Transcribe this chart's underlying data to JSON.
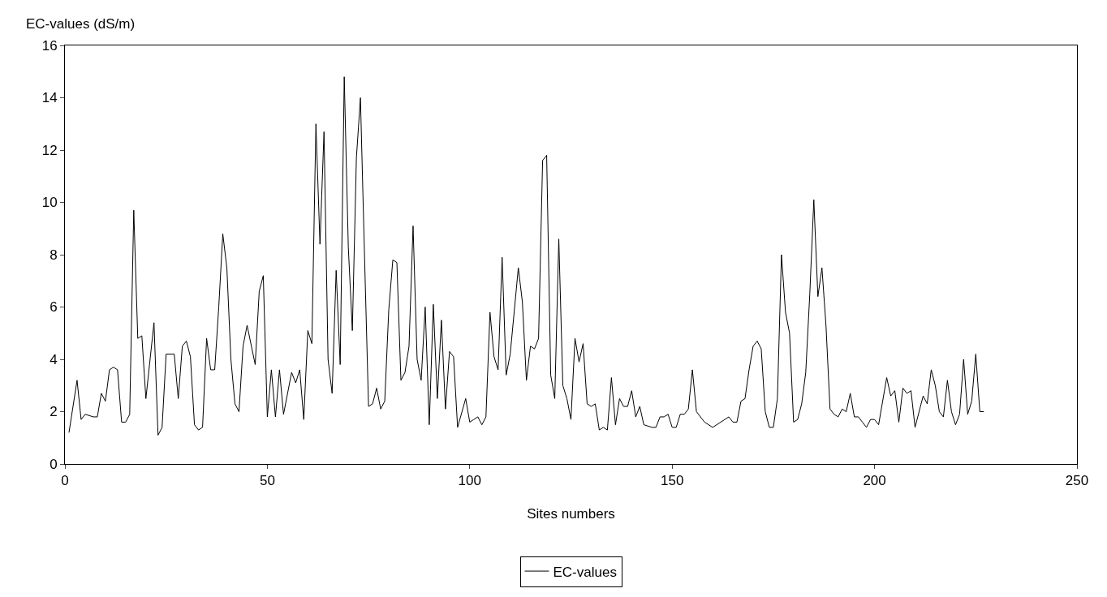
{
  "chart_data": {
    "type": "line",
    "xlabel": "Sites numbers",
    "ylabel": "EC-values (dS/m)",
    "x": [
      1,
      3,
      4,
      5,
      7,
      8,
      9,
      10,
      11,
      12,
      13,
      14,
      15,
      16,
      17,
      18,
      19,
      20,
      22,
      23,
      24,
      25,
      27,
      28,
      29,
      30,
      31,
      32,
      33,
      34,
      35,
      36,
      37,
      38,
      39,
      40,
      41,
      42,
      43,
      44,
      45,
      47,
      48,
      49,
      50,
      51,
      52,
      53,
      54,
      56,
      57,
      58,
      59,
      60,
      61,
      62,
      63,
      64,
      65,
      66,
      67,
      68,
      69,
      70,
      71,
      72,
      73,
      74,
      75,
      76,
      77,
      78,
      79,
      80,
      81,
      82,
      83,
      84,
      85,
      86,
      87,
      88,
      89,
      90,
      91,
      92,
      93,
      94,
      95,
      96,
      97,
      99,
      100,
      101,
      102,
      103,
      104,
      105,
      106,
      107,
      108,
      109,
      110,
      112,
      113,
      114,
      115,
      116,
      117,
      118,
      119,
      120,
      121,
      122,
      123,
      124,
      125,
      126,
      127,
      128,
      129,
      130,
      131,
      132,
      133,
      134,
      135,
      136,
      137,
      138,
      139,
      140,
      141,
      142,
      143,
      145,
      146,
      147,
      148,
      149,
      150,
      151,
      152,
      153,
      154,
      155,
      156,
      158,
      160,
      162,
      164,
      165,
      166,
      167,
      168,
      169,
      170,
      171,
      172,
      173,
      174,
      175,
      176,
      177,
      178,
      179,
      180,
      181,
      182,
      183,
      184,
      185,
      186,
      187,
      188,
      189,
      190,
      191,
      192,
      193,
      194,
      195,
      196,
      197,
      198,
      199,
      200,
      201,
      203,
      204,
      205,
      206,
      207,
      208,
      209,
      210,
      212,
      213,
      214,
      215,
      216,
      217,
      218,
      219,
      220,
      221,
      222,
      223,
      224,
      225,
      226,
      227
    ],
    "series": [
      {
        "name": "EC-values",
        "color": "#000000",
        "values": [
          1.2,
          3.2,
          1.7,
          1.9,
          1.8,
          1.8,
          2.7,
          2.4,
          3.6,
          3.7,
          3.6,
          1.6,
          1.6,
          1.9,
          9.7,
          4.8,
          4.9,
          2.5,
          5.4,
          1.1,
          1.4,
          4.2,
          4.2,
          2.5,
          4.5,
          4.7,
          4.1,
          1.5,
          1.3,
          1.4,
          4.8,
          3.6,
          3.6,
          6.0,
          8.8,
          7.5,
          4.0,
          2.3,
          2.0,
          4.5,
          5.3,
          3.8,
          6.6,
          7.2,
          1.8,
          3.6,
          1.8,
          3.6,
          1.9,
          3.5,
          3.1,
          3.6,
          1.7,
          5.1,
          4.6,
          13.0,
          8.4,
          12.7,
          4.0,
          2.7,
          7.4,
          3.8,
          14.8,
          8.3,
          5.1,
          11.7,
          14.0,
          8.0,
          2.2,
          2.3,
          2.9,
          2.1,
          2.4,
          5.9,
          7.8,
          7.7,
          3.2,
          3.5,
          4.5,
          9.1,
          4.0,
          3.2,
          6.0,
          1.5,
          6.1,
          2.5,
          5.5,
          2.1,
          4.3,
          4.1,
          1.4,
          2.5,
          1.6,
          1.7,
          1.8,
          1.5,
          1.8,
          5.8,
          4.1,
          3.6,
          7.9,
          3.4,
          4.2,
          7.5,
          6.2,
          3.2,
          4.5,
          4.4,
          4.8,
          11.6,
          11.8,
          3.4,
          2.5,
          8.6,
          3.0,
          2.5,
          1.7,
          4.8,
          3.9,
          4.6,
          2.3,
          2.2,
          2.3,
          1.3,
          1.4,
          1.3,
          3.3,
          1.5,
          2.5,
          2.2,
          2.2,
          2.8,
          1.8,
          2.2,
          1.5,
          1.4,
          1.4,
          1.8,
          1.8,
          1.9,
          1.4,
          1.4,
          1.9,
          1.9,
          2.1,
          3.6,
          2.0,
          1.6,
          1.4,
          1.6,
          1.8,
          1.6,
          1.6,
          2.4,
          2.5,
          3.6,
          4.5,
          4.7,
          4.4,
          2.0,
          1.4,
          1.4,
          2.5,
          8.0,
          5.8,
          5.0,
          1.6,
          1.7,
          2.3,
          3.5,
          6.5,
          10.1,
          6.4,
          7.5,
          5.3,
          2.1,
          1.9,
          1.8,
          2.1,
          2.0,
          2.7,
          1.8,
          1.8,
          1.6,
          1.4,
          1.7,
          1.7,
          1.5,
          3.3,
          2.6,
          2.8,
          1.6,
          2.9,
          2.7,
          2.8,
          1.4,
          2.6,
          2.3,
          3.6,
          3.0,
          2.0,
          1.8,
          3.2,
          2.0,
          1.5,
          1.9,
          4.0,
          1.9,
          2.4,
          4.2,
          2.0,
          2.0
        ]
      }
    ],
    "xlim": [
      0,
      250
    ],
    "xticks": [
      0,
      50,
      100,
      150,
      200,
      250
    ],
    "ylim": [
      0,
      16
    ],
    "yticks": [
      0,
      2,
      4,
      6,
      8,
      10,
      12,
      14,
      16
    ],
    "legend": "bottom",
    "marker": "none",
    "line_style": "solid"
  }
}
